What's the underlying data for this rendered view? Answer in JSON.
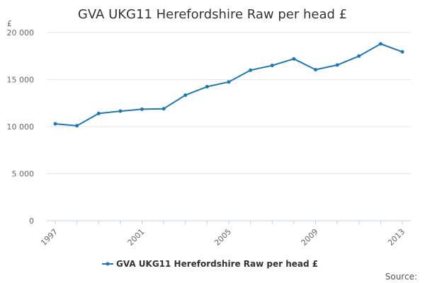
{
  "chart_data": {
    "type": "line",
    "title": "GVA UKG11 Herefordshire Raw per head £",
    "ylabel": "£",
    "xlabel": "",
    "x": [
      1997,
      1998,
      1999,
      2000,
      2001,
      2002,
      2003,
      2004,
      2005,
      2006,
      2007,
      2008,
      2009,
      2010,
      2011,
      2012,
      2013
    ],
    "x_tick_labels": [
      "1997",
      "2001",
      "2005",
      "2009",
      "2013"
    ],
    "y_tick_labels": [
      "0",
      "5 000",
      "10 000",
      "15 000",
      "20 000"
    ],
    "ylim": [
      0,
      20000
    ],
    "series": [
      {
        "name": "GVA UKG11 Herefordshire Raw per head £",
        "color": "#1f78b4",
        "values": [
          10300,
          10100,
          11400,
          11650,
          11850,
          11900,
          13350,
          14250,
          14750,
          16000,
          16500,
          17200,
          16050,
          16550,
          17500,
          18800,
          17950
        ]
      }
    ],
    "grid": true,
    "legend": "bottom-center",
    "source_label": "Source:"
  }
}
